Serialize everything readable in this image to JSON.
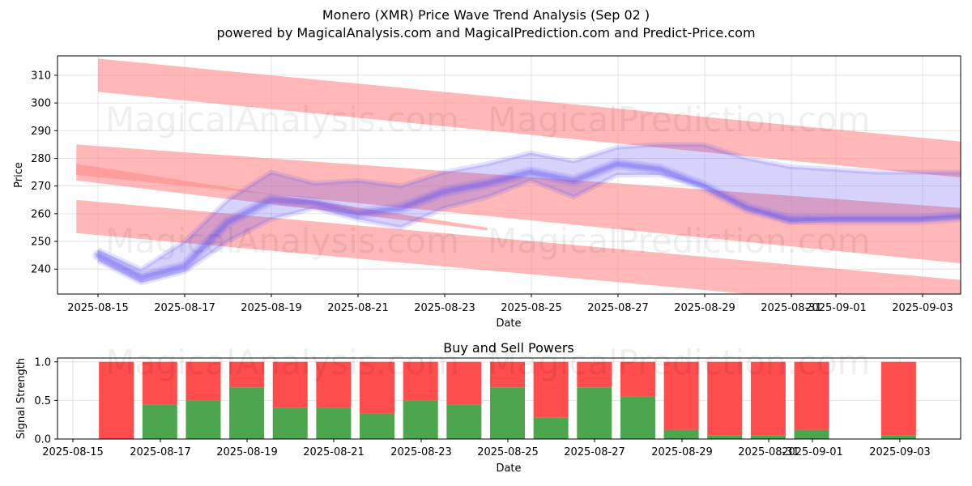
{
  "title_line1": "Monero (XMR) Price Wave Trend Analysis (Sep 02 )",
  "title_line2": "powered by MagicalAnalysis.com and MagicalPrediction.com and Predict-Price.com",
  "watermarks": [
    "MagicalAnalysis.com",
    "MagicalPrediction.com"
  ],
  "colors": {
    "band": "#ff8a8a",
    "wave": "#6a5cf0",
    "buy": "#4da64d",
    "sell": "#ff4c4c"
  },
  "chart_data": [
    {
      "type": "line",
      "title": "",
      "xlabel": "Date",
      "ylabel": "Price",
      "ylim": [
        231,
        317
      ],
      "yticks": [
        240,
        250,
        260,
        270,
        280,
        290,
        300,
        310
      ],
      "xtick_labels": [
        "2025-08-15",
        "2025-08-17",
        "2025-08-19",
        "2025-08-21",
        "2025-08-23",
        "2025-08-25",
        "2025-08-27",
        "2025-08-29",
        "2025-08-31",
        "2025-09-01",
        "2025-09-03"
      ],
      "grid": true,
      "bands": [
        {
          "name": "upper-channel",
          "x": [
            0,
            20
          ],
          "top": [
            316,
            286
          ],
          "bottom": [
            304,
            273
          ]
        },
        {
          "name": "middle-channel",
          "x": [
            -0.5,
            20
          ],
          "top": [
            285,
            262
          ],
          "bottom": [
            274,
            242
          ]
        },
        {
          "name": "lower-channel",
          "x": [
            -0.5,
            20
          ],
          "top": [
            265,
            236
          ],
          "bottom": [
            253,
            224
          ]
        },
        {
          "name": "short-channel",
          "x": [
            -0.5,
            9
          ],
          "top": [
            278,
            255
          ],
          "bottom": [
            272,
            254
          ]
        }
      ],
      "series": [
        {
          "name": "wave-main",
          "x": [
            0,
            1,
            2,
            3,
            4,
            5,
            6,
            7,
            8,
            9,
            10,
            11,
            12,
            13,
            14,
            15,
            16,
            17,
            18,
            19,
            20
          ],
          "values": [
            245,
            237,
            241,
            257,
            265,
            264,
            260,
            262,
            268,
            271,
            275,
            272,
            278,
            276,
            270,
            262,
            258,
            258,
            258,
            258,
            259
          ]
        },
        {
          "name": "wave-upper",
          "x": [
            0,
            1,
            2,
            3,
            4,
            5,
            6,
            7,
            8,
            9,
            10,
            11,
            12,
            13,
            14,
            15,
            16,
            17,
            18,
            19,
            20
          ],
          "values": [
            247,
            240,
            250,
            265,
            275,
            271,
            272,
            270,
            275,
            278,
            282,
            279,
            284,
            285,
            285,
            280,
            277,
            276,
            275,
            275,
            275
          ]
        },
        {
          "name": "wave-lower",
          "x": [
            0,
            1,
            2,
            3,
            4,
            5,
            6,
            7,
            8,
            9,
            10,
            11,
            12,
            13,
            14,
            15,
            16,
            17,
            18,
            19,
            20
          ],
          "values": [
            243,
            235,
            239,
            250,
            258,
            262,
            258,
            255,
            262,
            266,
            272,
            266,
            274,
            274,
            270,
            262,
            257,
            258,
            258,
            258,
            259
          ]
        }
      ]
    },
    {
      "type": "bar",
      "title": "Buy and Sell Powers",
      "xlabel": "Date",
      "ylabel": "Signal Strength",
      "ylim": [
        0,
        1.05
      ],
      "yticks": [
        "0.0",
        "0.5",
        "1.0"
      ],
      "xtick_labels": [
        "2025-08-15",
        "2025-08-17",
        "2025-08-19",
        "2025-08-21",
        "2025-08-23",
        "2025-08-25",
        "2025-08-27",
        "2025-08-29",
        "2025-08-31",
        "2025-09-01",
        "2025-09-03"
      ],
      "grid": true,
      "x": [
        1,
        2,
        3,
        4,
        5,
        6,
        7,
        8,
        9,
        10,
        11,
        12,
        13,
        14,
        15,
        16,
        17,
        19
      ],
      "series": [
        {
          "name": "Buy",
          "values": [
            0,
            0.45,
            0.5,
            0.67,
            0.4,
            0.4,
            0.33,
            0.5,
            0.45,
            0.67,
            0.28,
            0.67,
            0.55,
            0.12,
            0.05,
            0.05,
            0.12,
            0.05
          ]
        },
        {
          "name": "Sell",
          "values": [
            1,
            0.55,
            0.5,
            0.33,
            0.6,
            0.6,
            0.67,
            0.5,
            0.55,
            0.33,
            0.72,
            0.33,
            0.45,
            0.88,
            0.95,
            0.95,
            0.88,
            0.95
          ]
        }
      ]
    }
  ]
}
